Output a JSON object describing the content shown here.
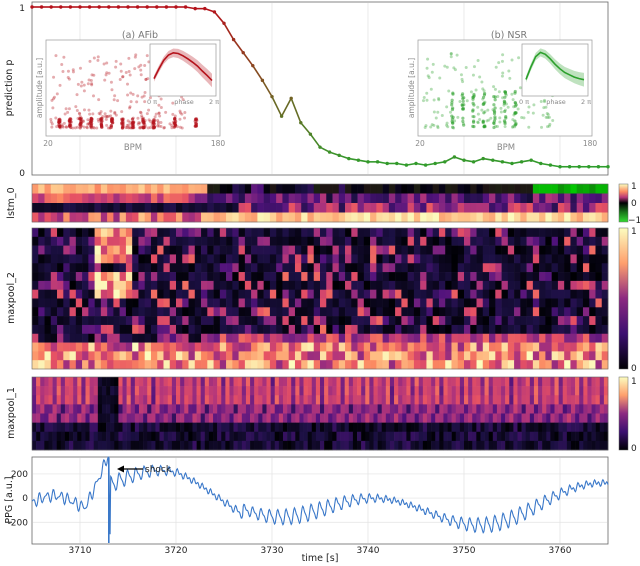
{
  "chart_data": [
    {
      "panel": "prediction",
      "type": "line",
      "ylabel": "prediction p",
      "yticks": [
        "0",
        "1"
      ],
      "ylim": [
        0,
        1
      ],
      "xlim": [
        3705,
        3765
      ],
      "grid": true,
      "series": [
        {
          "x": [
            3705.0,
            3706.0,
            3707.0,
            3708.0,
            3709.0,
            3710.0,
            3711.0,
            3712.0,
            3713.0,
            3714.0,
            3715.0,
            3716.0,
            3717.0,
            3718.0,
            3719.0,
            3720.0,
            3721.0,
            3722.0,
            3723.0,
            3724.0,
            3725.0,
            3726.0,
            3727.0,
            3728.0,
            3729.0,
            3730.0,
            3731.0,
            3732.0,
            3733.0,
            3734.0,
            3735.0,
            3736.0,
            3737.0,
            3738.0,
            3739.0,
            3740.0,
            3741.0,
            3742.0,
            3743.0,
            3744.0,
            3745.0,
            3746.0,
            3747.0,
            3748.0,
            3749.0,
            3750.0,
            3751.0,
            3752.0,
            3753.0,
            3754.0,
            3755.0,
            3756.0,
            3757.0,
            3758.0,
            3759.0,
            3760.0,
            3761.0,
            3762.0,
            3763.0,
            3764.0,
            3765.0
          ],
          "y": [
            1.0,
            1.0,
            1.0,
            1.0,
            1.0,
            1.0,
            1.0,
            1.0,
            1.0,
            1.0,
            1.0,
            1.0,
            1.0,
            1.0,
            1.0,
            1.0,
            1.0,
            0.99,
            0.99,
            0.97,
            0.9,
            0.8,
            0.72,
            0.64,
            0.55,
            0.45,
            0.33,
            0.44,
            0.29,
            0.22,
            0.14,
            0.11,
            0.09,
            0.07,
            0.06,
            0.05,
            0.05,
            0.04,
            0.04,
            0.03,
            0.04,
            0.03,
            0.04,
            0.05,
            0.08,
            0.06,
            0.05,
            0.07,
            0.06,
            0.05,
            0.04,
            0.05,
            0.06,
            0.04,
            0.03,
            0.02,
            0.02,
            0.02,
            0.02,
            0.02,
            0.02
          ]
        }
      ]
    },
    {
      "panel": "inset-afib",
      "type": "scatter",
      "title": "(a) AFib",
      "xlabel": "BPM",
      "ylabel": "amplitude [a.u.]",
      "xticks": [
        "20",
        "180"
      ],
      "xlim": [
        20,
        180
      ],
      "cluster_bpm": [
        30,
        40,
        50,
        60,
        70,
        80,
        90,
        100,
        110,
        120,
        140,
        160
      ],
      "note": "dense scatter of beats with regular column clusters at low amplitude"
    },
    {
      "panel": "inset-afib-waveform",
      "type": "line",
      "xlabel": "phase",
      "xticks": [
        "0 π",
        "2 π"
      ],
      "y": [
        0.3,
        0.55,
        0.78,
        0.92,
        0.98,
        0.96,
        0.9,
        0.82,
        0.73,
        0.63,
        0.5,
        0.38,
        0.25
      ]
    },
    {
      "panel": "inset-nsr",
      "type": "scatter",
      "title": "(b) NSR",
      "xlabel": "BPM",
      "ylabel": "amplitude [a.u.]",
      "xticks": [
        "20",
        "180"
      ],
      "xlim": [
        20,
        180
      ],
      "cluster_bpm": [
        50,
        60,
        70,
        80,
        90,
        100,
        110
      ],
      "note": "scattered beats with vertical column clusters around 60–110 BPM"
    },
    {
      "panel": "inset-nsr-waveform",
      "type": "line",
      "xlabel": "phase",
      "xticks": [
        "0 π",
        "2 π"
      ],
      "y": [
        0.28,
        0.6,
        0.88,
        0.99,
        0.94,
        0.82,
        0.68,
        0.56,
        0.46,
        0.4,
        0.34,
        0.3,
        0.27
      ]
    },
    {
      "panel": "lstm_0",
      "type": "heatmap",
      "ylabel": "lstm_0",
      "rows": 4,
      "colorbar_ticks": [
        "1",
        "0",
        "−1"
      ],
      "colormap": "magma-diverging-green"
    },
    {
      "panel": "maxpool_2",
      "type": "heatmap",
      "ylabel": "maxpool_2",
      "rows": 16,
      "colorbar_ticks": [
        "1",
        "0"
      ],
      "colormap": "magma"
    },
    {
      "panel": "maxpool_1",
      "type": "heatmap",
      "ylabel": "maxpool_1",
      "rows": 8,
      "colorbar_ticks": [
        "1",
        "0"
      ],
      "colormap": "magma"
    },
    {
      "panel": "ppg",
      "type": "line",
      "ylabel": "PPG [a.u.]",
      "xlabel": "time [s]",
      "xlim": [
        3705,
        3765
      ],
      "ylim": [
        -380,
        340
      ],
      "yticks": [
        "-200",
        "0",
        "200"
      ],
      "xticks": [
        "3710",
        "3720",
        "3730",
        "3740",
        "3750",
        "3760"
      ],
      "annotation": {
        "text": "shock",
        "x": 3713
      },
      "grid": true
    }
  ],
  "colors": {
    "afib": "#b5121b",
    "nsr": "#2ca02c",
    "transition": "#7a5a23",
    "ppg": "#3a78c9",
    "grid": "#e2e2e2",
    "axis": "#666666"
  }
}
